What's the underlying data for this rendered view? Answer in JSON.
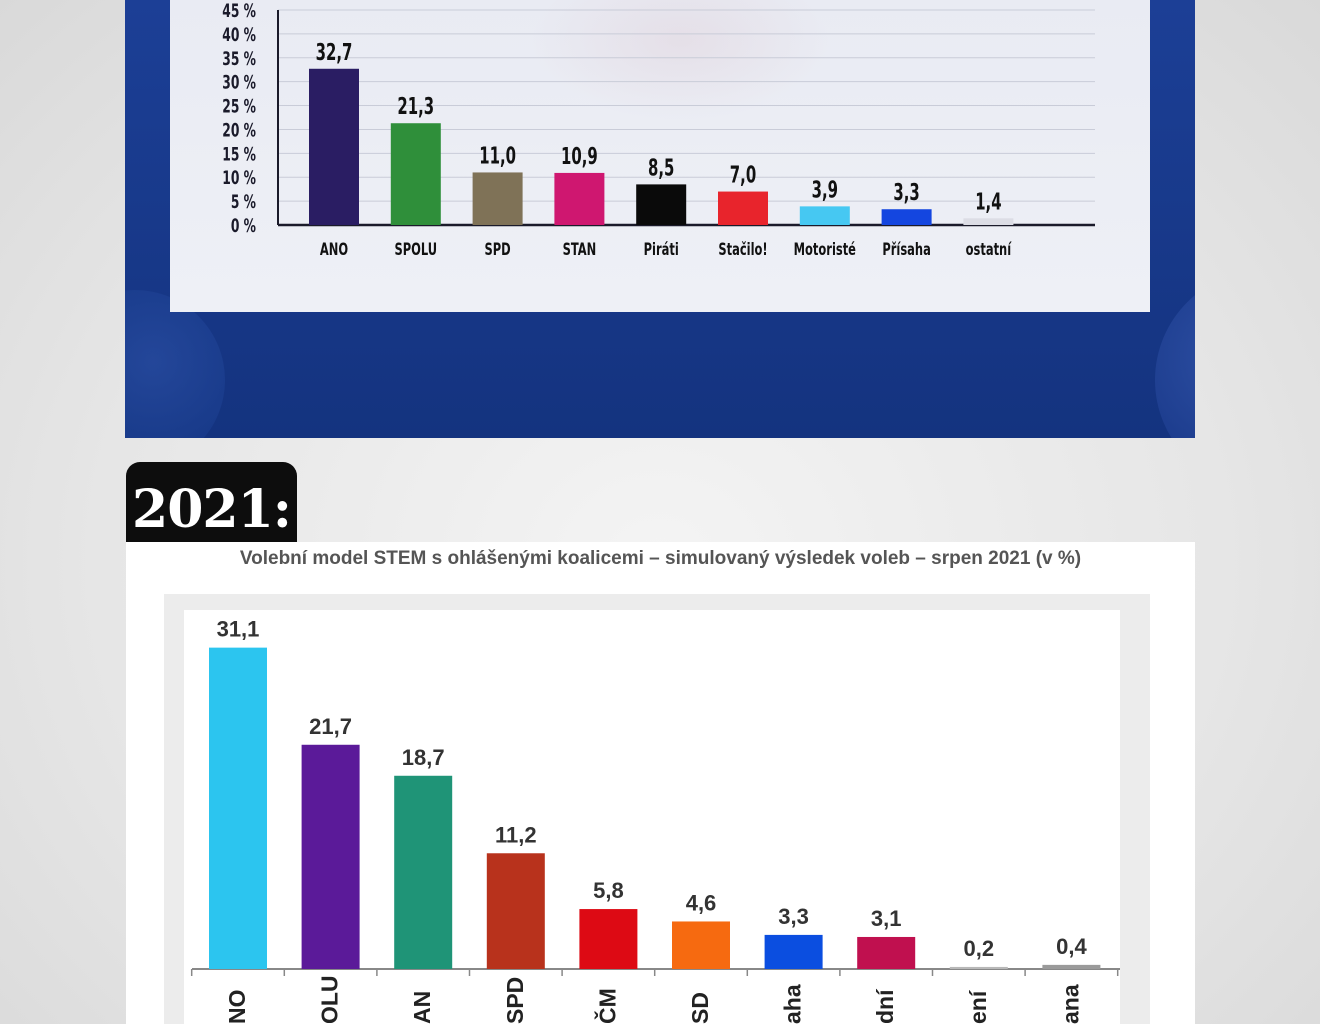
{
  "chart_data": [
    {
      "type": "bar",
      "title": "",
      "xlabel": "",
      "ylabel": "",
      "ylim": [
        0,
        45
      ],
      "yticks": [
        "0 %",
        "5 %",
        "10 %",
        "15 %",
        "20 %",
        "25 %",
        "30 %",
        "35 %",
        "40 %",
        "45 %"
      ],
      "categories": [
        "ANO",
        "SPOLU",
        "SPD",
        "STAN",
        "Piráti",
        "Stačilo!",
        "Motoristé",
        "Přísaha",
        "ostatní"
      ],
      "values": [
        32.7,
        21.3,
        11.0,
        10.9,
        8.5,
        7.0,
        3.9,
        3.3,
        1.4
      ],
      "labels": [
        "32,7",
        "21,3",
        "11,0",
        "10,9",
        "8,5",
        "7,0",
        "3,9",
        "3,3",
        "1,4"
      ],
      "colors": [
        "#2a1d63",
        "#2f8f3a",
        "#7f7257",
        "#cf1770",
        "#0a0a0a",
        "#e8242c",
        "#46c8f2",
        "#1446e0",
        "#dcdde5"
      ],
      "grid": true
    },
    {
      "type": "bar",
      "title": "Volební model STEM s ohlášenými koalicemi – simulovaný výsledek voleb – srpen 2021 (v %)",
      "xlabel": "",
      "ylabel": "",
      "ylim": [
        0,
        33
      ],
      "categories": [
        "NO",
        "OLU",
        "AN",
        "SPD",
        "ČM",
        "SD",
        "aha",
        "dní",
        "ení",
        "ana"
      ],
      "values": [
        31.1,
        21.7,
        18.7,
        11.2,
        5.8,
        4.6,
        3.3,
        3.1,
        0.2,
        0.4
      ],
      "labels": [
        "31,1",
        "21,7",
        "18,7",
        "11,2",
        "5,8",
        "4,6",
        "3,3",
        "3,1",
        "0,2",
        "0,4"
      ],
      "colors": [
        "#2cc5ef",
        "#5b1a99",
        "#1f9477",
        "#b8321c",
        "#dd0a14",
        "#f66a10",
        "#0b4ee0",
        "#c0104f",
        "#b8b8b8",
        "#9a9a9a"
      ],
      "grid": false
    }
  ],
  "bottom_tag": "2021:",
  "colors": {
    "top_panel": "#1b3c91",
    "top_card": "#e9ebf3",
    "tag_bg": "#0d0d0d"
  }
}
